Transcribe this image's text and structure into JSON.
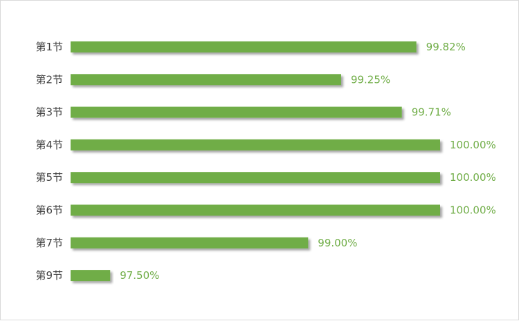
{
  "chart_data": {
    "type": "bar",
    "orientation": "horizontal",
    "categories": [
      "第1节",
      "第2节",
      "第3节",
      "第4节",
      "第5节",
      "第6节",
      "第7节",
      "第9节"
    ],
    "values": [
      99.82,
      99.25,
      99.71,
      100.0,
      100.0,
      100.0,
      99.0,
      97.5
    ],
    "value_labels": [
      "99.82%",
      "99.25%",
      "99.71%",
      "100.00%",
      "100.00%",
      "100.00%",
      "99.00%",
      "97.50%"
    ],
    "xlim": [
      97.2,
      100.0
    ],
    "title": "",
    "xlabel": "",
    "ylabel": "",
    "grid": false,
    "bar_color": "#70ad47",
    "label_color": "#70ad47",
    "category_color": "#404040"
  }
}
